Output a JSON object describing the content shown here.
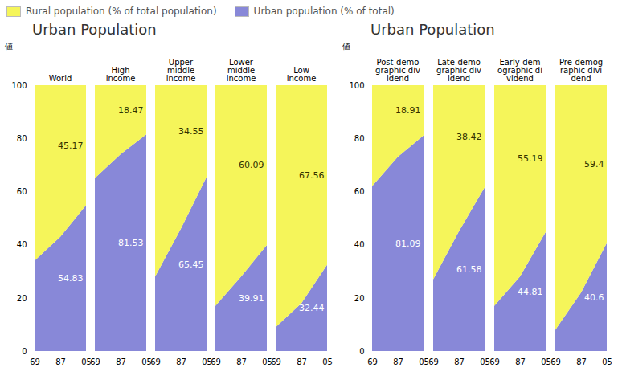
{
  "chart_data": [
    {
      "type": "area",
      "stacked": true,
      "title": "Urban Population",
      "categories": [
        "World",
        "High\nincome",
        "Upper\nmiddle\nincome",
        "Lower\nmiddle\nincome",
        "Low\nincome"
      ],
      "x": [
        "69",
        "87",
        "05"
      ],
      "ylabel": "値",
      "ylim": [
        0,
        100
      ],
      "yticks": [
        0,
        20,
        40,
        60,
        80,
        100
      ],
      "grid": false,
      "data_labels": true,
      "legend": "upper left",
      "series": [
        {
          "name": "Rural population (% of total population)",
          "color": "#f5f55a",
          "values": [
            [
              66,
              57,
              45.17
            ],
            [
              35,
              26,
              18.47
            ],
            [
              72,
              54,
              34.55
            ],
            [
              83,
              72,
              60.09
            ],
            [
              91,
              82,
              67.56
            ]
          ]
        },
        {
          "name": "Urban population (% of total)",
          "color": "#8888d8",
          "values": [
            [
              34.0,
              43.0,
              54.83
            ],
            [
              65.0,
              74.0,
              81.53
            ],
            [
              28.0,
              46.0,
              65.45
            ],
            [
              17.0,
              28.0,
              39.91
            ],
            [
              9.0,
              18.0,
              32.44
            ]
          ]
        }
      ]
    },
    {
      "type": "area",
      "stacked": true,
      "title": "Urban Population",
      "categories": [
        "Post-demo\ngraphic div\nidend",
        "Late-demo\ngraphic div\nidend",
        "Early-dem\nographic di\nvidend",
        "Pre-demog\nraphic divi\ndend"
      ],
      "x": [
        "69",
        "87",
        "05"
      ],
      "ylabel": "値",
      "ylim": [
        0,
        100
      ],
      "yticks": [
        0,
        20,
        40,
        60,
        80,
        100
      ],
      "grid": false,
      "data_labels": true,
      "legend": "upper left",
      "series": [
        {
          "name": "Rural population (% of total population)",
          "color": "#f5f55a",
          "values": [
            [
              38,
              27,
              18.91
            ],
            [
              73,
              55,
              38.42
            ],
            [
              83,
              72,
              55.19
            ],
            [
              92,
              78,
              59.4
            ]
          ]
        },
        {
          "name": "Urban population (% of total)",
          "color": "#8888d8",
          "values": [
            [
              62.0,
              73.0,
              81.09
            ],
            [
              27.0,
              45.0,
              61.58
            ],
            [
              17.0,
              28.0,
              44.81
            ],
            [
              8.0,
              22.0,
              40.6
            ]
          ]
        }
      ]
    }
  ]
}
